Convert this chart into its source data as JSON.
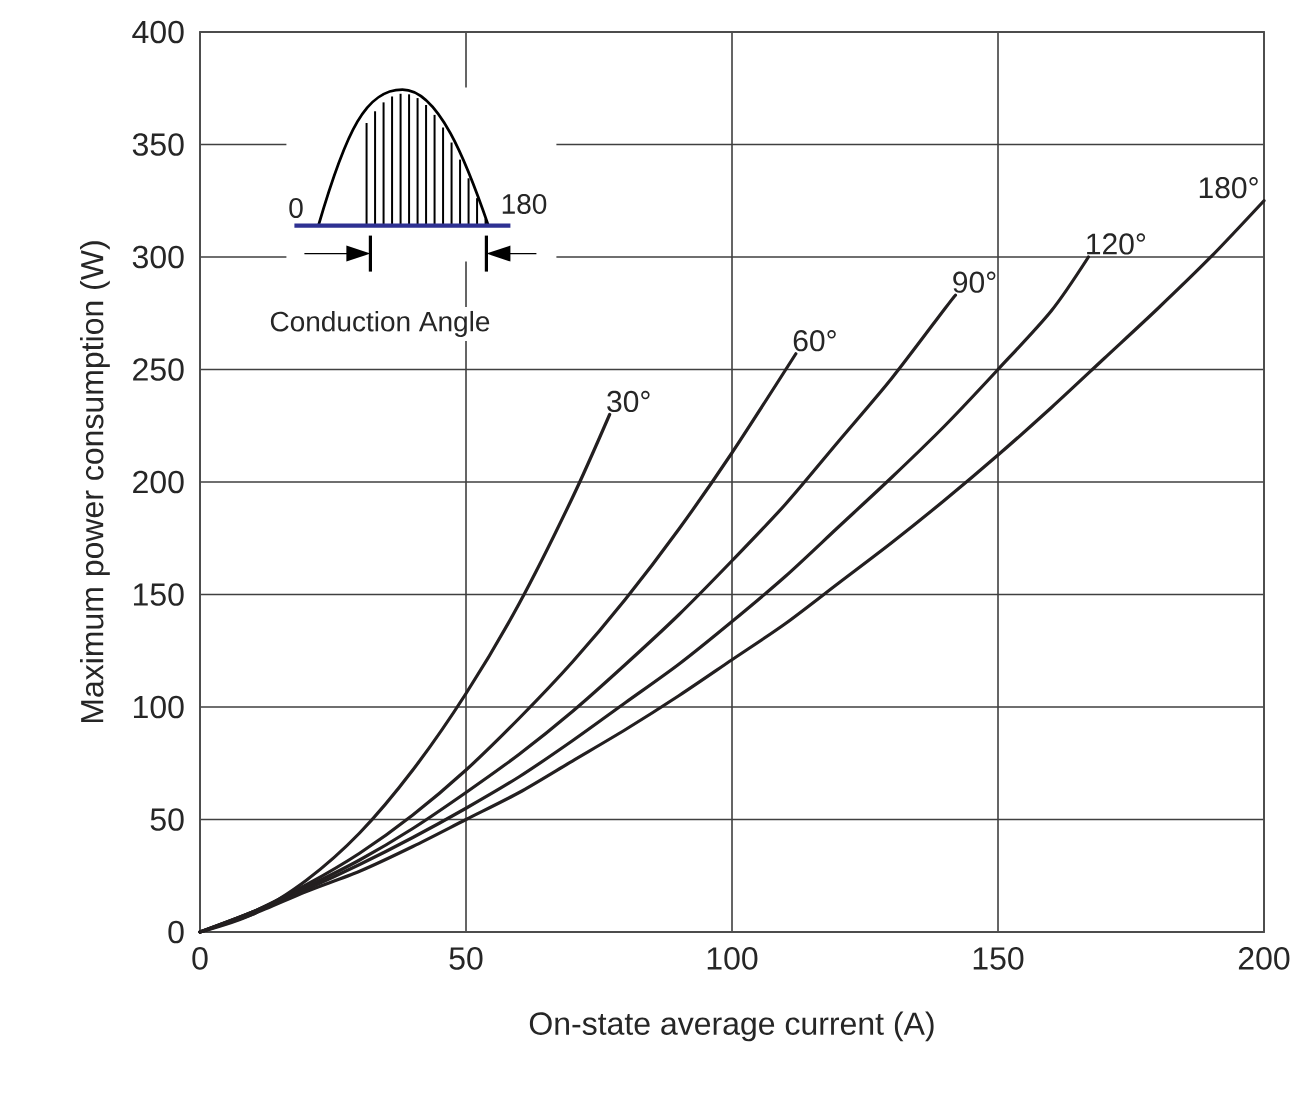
{
  "chart_data": {
    "type": "line",
    "xlabel": "On-state average current (A)",
    "ylabel": "Maximum power consumption (W)",
    "annotations": [
      "0",
      "180",
      "Conduction Angle"
    ],
    "xlim": [
      0,
      200
    ],
    "xticks": [
      0,
      50,
      100,
      150,
      200
    ],
    "ylim": [
      0,
      400
    ],
    "yticks": [
      0,
      50,
      100,
      150,
      200,
      250,
      300,
      350,
      400
    ],
    "grid": true,
    "marker": "none",
    "line_style": "solid",
    "series": [
      {
        "name": "30°",
        "color": "#231f20",
        "x": [
          0,
          10,
          20,
          30,
          40,
          50,
          60,
          70,
          77
        ],
        "values": [
          0,
          8,
          23,
          44,
          72,
          106,
          146,
          193,
          230
        ]
      },
      {
        "name": "60°",
        "color": "#231f20",
        "x": [
          0,
          10,
          20,
          30,
          40,
          50,
          60,
          70,
          80,
          90,
          100,
          112
        ],
        "values": [
          0,
          9,
          21,
          35,
          52,
          72,
          95,
          120,
          148,
          179,
          213,
          257
        ]
      },
      {
        "name": "90°",
        "color": "#231f20",
        "x": [
          0,
          10,
          20,
          30,
          40,
          50,
          60,
          70,
          80,
          90,
          100,
          110,
          120,
          130,
          140,
          142
        ],
        "values": [
          0,
          9,
          20,
          32,
          46,
          62,
          79,
          98,
          119,
          141,
          165,
          190,
          218,
          246,
          277,
          283
        ]
      },
      {
        "name": "120°",
        "color": "#231f20",
        "x": [
          0,
          10,
          20,
          30,
          40,
          50,
          60,
          70,
          80,
          90,
          100,
          110,
          120,
          130,
          140,
          150,
          160,
          167
        ],
        "values": [
          0,
          9,
          19,
          30,
          42,
          55,
          69,
          85,
          102,
          119,
          138,
          158,
          180,
          202,
          225,
          250,
          276,
          300
        ]
      },
      {
        "name": "180°",
        "color": "#231f20",
        "x": [
          0,
          10,
          20,
          30,
          40,
          50,
          60,
          70,
          80,
          90,
          100,
          110,
          120,
          130,
          140,
          150,
          160,
          170,
          180,
          190,
          200
        ],
        "values": [
          0,
          8,
          18,
          27,
          38,
          50,
          62,
          76,
          90,
          105,
          121,
          137,
          155,
          173,
          192,
          212,
          233,
          255,
          277,
          300,
          325
        ]
      }
    ]
  }
}
